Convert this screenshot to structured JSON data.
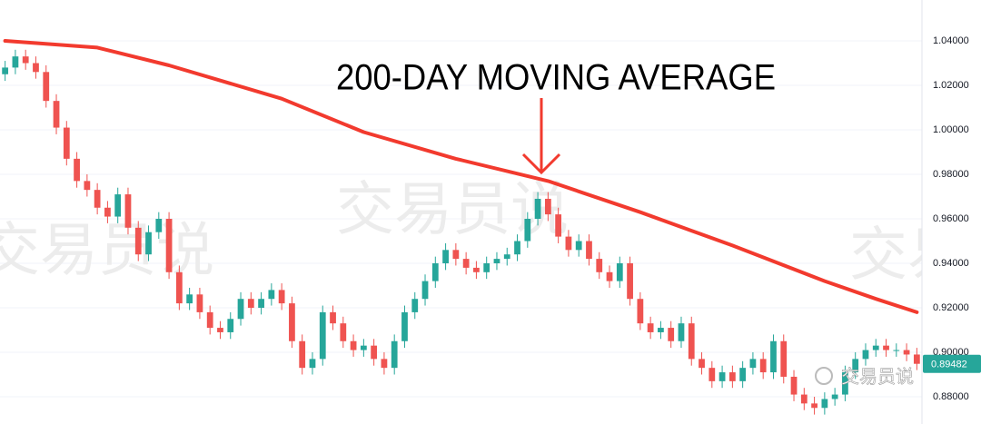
{
  "chart_data": {
    "type": "candlestick",
    "annotation": "200-DAY MOVING AVERAGE",
    "watermark": "交易员说",
    "up_color": "#26a69a",
    "down_color": "#ef5350",
    "open": [
      1.025,
      1.028,
      1.033,
      1.03,
      1.026,
      1.013,
      1.001,
      0.987,
      0.977,
      0.973,
      0.965,
      0.961,
      0.971,
      0.956,
      0.944,
      0.954,
      0.96,
      0.936,
      0.922,
      0.926,
      0.918,
      0.911,
      0.909,
      0.915,
      0.924,
      0.92,
      0.924,
      0.928,
      0.922,
      0.905,
      0.893,
      0.897,
      0.918,
      0.913,
      0.905,
      0.901,
      0.903,
      0.897,
      0.893,
      0.905,
      0.918,
      0.924,
      0.932,
      0.94,
      0.946,
      0.942,
      0.938,
      0.936,
      0.94,
      0.942,
      0.944,
      0.95,
      0.96,
      0.969,
      0.962,
      0.952,
      0.946,
      0.95,
      0.942,
      0.936,
      0.932,
      0.94,
      0.924,
      0.913,
      0.909,
      0.911,
      0.905,
      0.913,
      0.897,
      0.893,
      0.887,
      0.891,
      0.887,
      0.893,
      0.897,
      0.891,
      0.905,
      0.889,
      0.881,
      0.877,
      0.875,
      0.879,
      0.881,
      0.891,
      0.897,
      0.901,
      0.903,
      0.901,
      0.901,
      0.899
    ],
    "high": [
      1.031,
      1.036,
      1.036,
      1.033,
      1.029,
      1.016,
      1.004,
      0.99,
      0.98,
      0.976,
      0.968,
      0.974,
      0.974,
      0.959,
      0.957,
      0.963,
      0.963,
      0.939,
      0.929,
      0.929,
      0.921,
      0.914,
      0.918,
      0.927,
      0.927,
      0.927,
      0.931,
      0.931,
      0.925,
      0.908,
      0.9,
      0.921,
      0.921,
      0.916,
      0.908,
      0.906,
      0.906,
      0.9,
      0.908,
      0.921,
      0.927,
      0.935,
      0.943,
      0.949,
      0.949,
      0.945,
      0.941,
      0.943,
      0.945,
      0.947,
      0.953,
      0.963,
      0.972,
      0.972,
      0.965,
      0.955,
      0.953,
      0.953,
      0.945,
      0.939,
      0.943,
      0.943,
      0.927,
      0.916,
      0.914,
      0.914,
      0.916,
      0.916,
      0.9,
      0.896,
      0.894,
      0.894,
      0.896,
      0.9,
      0.9,
      0.908,
      0.908,
      0.892,
      0.884,
      0.88,
      0.882,
      0.884,
      0.894,
      0.9,
      0.904,
      0.906,
      0.906,
      0.904,
      0.904,
      0.902
    ],
    "low": [
      1.022,
      1.025,
      1.027,
      1.023,
      1.01,
      0.998,
      0.984,
      0.974,
      0.97,
      0.962,
      0.958,
      0.958,
      0.953,
      0.941,
      0.941,
      0.951,
      0.933,
      0.919,
      0.919,
      0.915,
      0.908,
      0.906,
      0.906,
      0.912,
      0.917,
      0.917,
      0.921,
      0.919,
      0.902,
      0.89,
      0.89,
      0.894,
      0.91,
      0.902,
      0.898,
      0.898,
      0.894,
      0.89,
      0.89,
      0.902,
      0.915,
      0.921,
      0.929,
      0.937,
      0.939,
      0.935,
      0.933,
      0.933,
      0.937,
      0.939,
      0.941,
      0.947,
      0.957,
      0.959,
      0.949,
      0.943,
      0.943,
      0.939,
      0.933,
      0.929,
      0.929,
      0.921,
      0.91,
      0.906,
      0.906,
      0.902,
      0.902,
      0.894,
      0.89,
      0.884,
      0.884,
      0.884,
      0.884,
      0.89,
      0.888,
      0.888,
      0.886,
      0.878,
      0.874,
      0.872,
      0.872,
      0.876,
      0.878,
      0.888,
      0.894,
      0.898,
      0.898,
      0.898,
      0.896,
      0.892
    ],
    "close": [
      1.028,
      1.033,
      1.03,
      1.026,
      1.013,
      1.001,
      0.987,
      0.977,
      0.973,
      0.965,
      0.961,
      0.971,
      0.956,
      0.944,
      0.954,
      0.96,
      0.936,
      0.922,
      0.926,
      0.918,
      0.911,
      0.909,
      0.915,
      0.924,
      0.92,
      0.924,
      0.928,
      0.922,
      0.905,
      0.893,
      0.897,
      0.918,
      0.913,
      0.905,
      0.901,
      0.903,
      0.897,
      0.893,
      0.905,
      0.918,
      0.924,
      0.932,
      0.94,
      0.946,
      0.942,
      0.938,
      0.936,
      0.94,
      0.942,
      0.944,
      0.95,
      0.96,
      0.969,
      0.962,
      0.952,
      0.946,
      0.95,
      0.942,
      0.936,
      0.932,
      0.94,
      0.924,
      0.913,
      0.909,
      0.911,
      0.905,
      0.913,
      0.897,
      0.893,
      0.887,
      0.891,
      0.887,
      0.893,
      0.897,
      0.891,
      0.905,
      0.889,
      0.881,
      0.877,
      0.875,
      0.879,
      0.881,
      0.891,
      0.897,
      0.901,
      0.903,
      0.901,
      0.901,
      0.899,
      0.89482
    ],
    "moving_average": {
      "color": "#f23a2e",
      "x": [
        0,
        9,
        16,
        27,
        35,
        44,
        53,
        62,
        71,
        80,
        85,
        89
      ],
      "values": [
        1.04,
        1.037,
        1.029,
        1.014,
        0.999,
        0.987,
        0.977,
        0.963,
        0.948,
        0.932,
        0.924,
        0.918
      ]
    },
    "ylim": [
      0.86776,
      1.05837
    ],
    "yticks": [
      {
        "value": 0.88,
        "label": "0.88000"
      },
      {
        "value": 0.9,
        "label": "0.90000"
      },
      {
        "value": 0.92,
        "label": "0.92000"
      },
      {
        "value": 0.94,
        "label": "0.94000"
      },
      {
        "value": 0.96,
        "label": "0.96000"
      },
      {
        "value": 0.98,
        "label": "0.98000"
      },
      {
        "value": 1.0,
        "label": "1.00000"
      },
      {
        "value": 1.02,
        "label": "1.02000"
      },
      {
        "value": 1.04,
        "label": "1.04000"
      }
    ],
    "grid": true
  }
}
